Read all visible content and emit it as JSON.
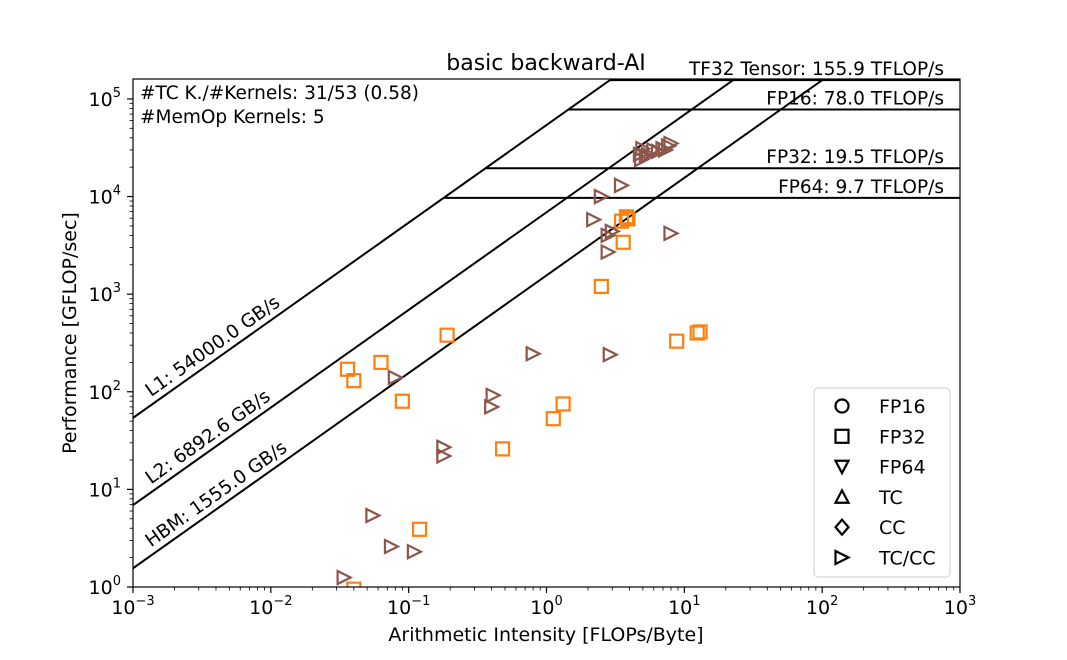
{
  "chart_data": {
    "type": "scatter",
    "title": "basic backward-AI",
    "xlabel": "Arithmetic Intensity [FLOPs/Byte]",
    "ylabel": "Performance [GFLOP/sec]",
    "xscale": "log",
    "yscale": "log",
    "xlim": [
      0.001,
      1000
    ],
    "ylim": [
      1,
      160000
    ],
    "x_ticks": [
      {
        "base": "10",
        "exp": "−3",
        "value": 0.001
      },
      {
        "base": "10",
        "exp": "−2",
        "value": 0.01
      },
      {
        "base": "10",
        "exp": "−1",
        "value": 0.1
      },
      {
        "base": "10",
        "exp": "0",
        "value": 1
      },
      {
        "base": "10",
        "exp": "1",
        "value": 10
      },
      {
        "base": "10",
        "exp": "2",
        "value": 100
      },
      {
        "base": "10",
        "exp": "3",
        "value": 1000
      }
    ],
    "y_ticks": [
      {
        "base": "10",
        "exp": "0",
        "value": 1
      },
      {
        "base": "10",
        "exp": "1",
        "value": 10
      },
      {
        "base": "10",
        "exp": "2",
        "value": 100
      },
      {
        "base": "10",
        "exp": "3",
        "value": 1000
      },
      {
        "base": "10",
        "exp": "4",
        "value": 10000
      },
      {
        "base": "10",
        "exp": "5",
        "value": 100000
      }
    ],
    "annotations": [
      "#TC K./#Kernels:  31/53 (0.58)",
      "#MemOp Kernels: 5"
    ],
    "ceilings": [
      {
        "label": "TF32 Tensor: 155.9 TFLOP/s",
        "gflops": 155900
      },
      {
        "label": "FP16: 78.0 TFLOP/s",
        "gflops": 78000
      },
      {
        "label": "FP32: 19.5 TFLOP/s",
        "gflops": 19500
      },
      {
        "label": "FP64: 9.7 TFLOP/s",
        "gflops": 9700
      }
    ],
    "bandwidths": [
      {
        "label": "L1: 54000.0 GB/s",
        "gbps": 54000
      },
      {
        "label": "L2: 6892.6 GB/s",
        "gbps": 6892.6
      },
      {
        "label": "HBM: 1555.0 GB/s",
        "gbps": 1555
      }
    ],
    "legend": {
      "placement": "lower-right",
      "entries": [
        {
          "label": "FP16",
          "marker": "circle"
        },
        {
          "label": "FP32",
          "marker": "square"
        },
        {
          "label": "FP64",
          "marker": "triangle-down"
        },
        {
          "label": "TC",
          "marker": "triangle-up"
        },
        {
          "label": "CC",
          "marker": "diamond"
        },
        {
          "label": "TC/CC",
          "marker": "triangle-right"
        }
      ]
    },
    "series": [
      {
        "marker": "square",
        "color": "#ff7f0e",
        "points": [
          [
            0.036,
            170
          ],
          [
            0.04,
            130
          ],
          [
            0.063,
            200
          ],
          [
            0.09,
            80
          ],
          [
            0.19,
            380
          ],
          [
            0.12,
            3.9
          ],
          [
            0.48,
            26
          ],
          [
            1.12,
            53
          ],
          [
            1.32,
            75
          ],
          [
            0.04,
            0.95
          ],
          [
            2.5,
            1200
          ],
          [
            3.6,
            3400
          ],
          [
            3.5,
            5600
          ],
          [
            3.9,
            5900
          ],
          [
            3.8,
            6200
          ],
          [
            8.8,
            330
          ],
          [
            12.4,
            400
          ],
          [
            13.0,
            410
          ]
        ]
      },
      {
        "marker": "triangle-right",
        "color": "#8c564b",
        "points": [
          [
            0.034,
            1.25
          ],
          [
            0.055,
            5.4
          ],
          [
            0.075,
            2.6
          ],
          [
            0.11,
            2.3
          ],
          [
            0.08,
            140
          ],
          [
            0.18,
            22
          ],
          [
            0.18,
            27
          ],
          [
            0.4,
            70
          ],
          [
            0.41,
            92
          ],
          [
            0.8,
            245
          ],
          [
            2.2,
            5800
          ],
          [
            2.5,
            10000
          ],
          [
            3.5,
            13000
          ],
          [
            2.8,
            2700
          ],
          [
            2.8,
            4000
          ],
          [
            3.0,
            4400
          ],
          [
            2.9,
            240
          ],
          [
            8.0,
            4200
          ],
          [
            4.9,
            24000
          ],
          [
            5.0,
            31000
          ],
          [
            5.5,
            27000
          ],
          [
            6.0,
            30000
          ],
          [
            7.0,
            31000
          ],
          [
            7.7,
            33000
          ],
          [
            8.0,
            35000
          ],
          [
            4.8,
            27000
          ],
          [
            6.5,
            29000
          ],
          [
            7.3,
            30000
          ],
          [
            5.3,
            26000
          ]
        ]
      }
    ]
  }
}
